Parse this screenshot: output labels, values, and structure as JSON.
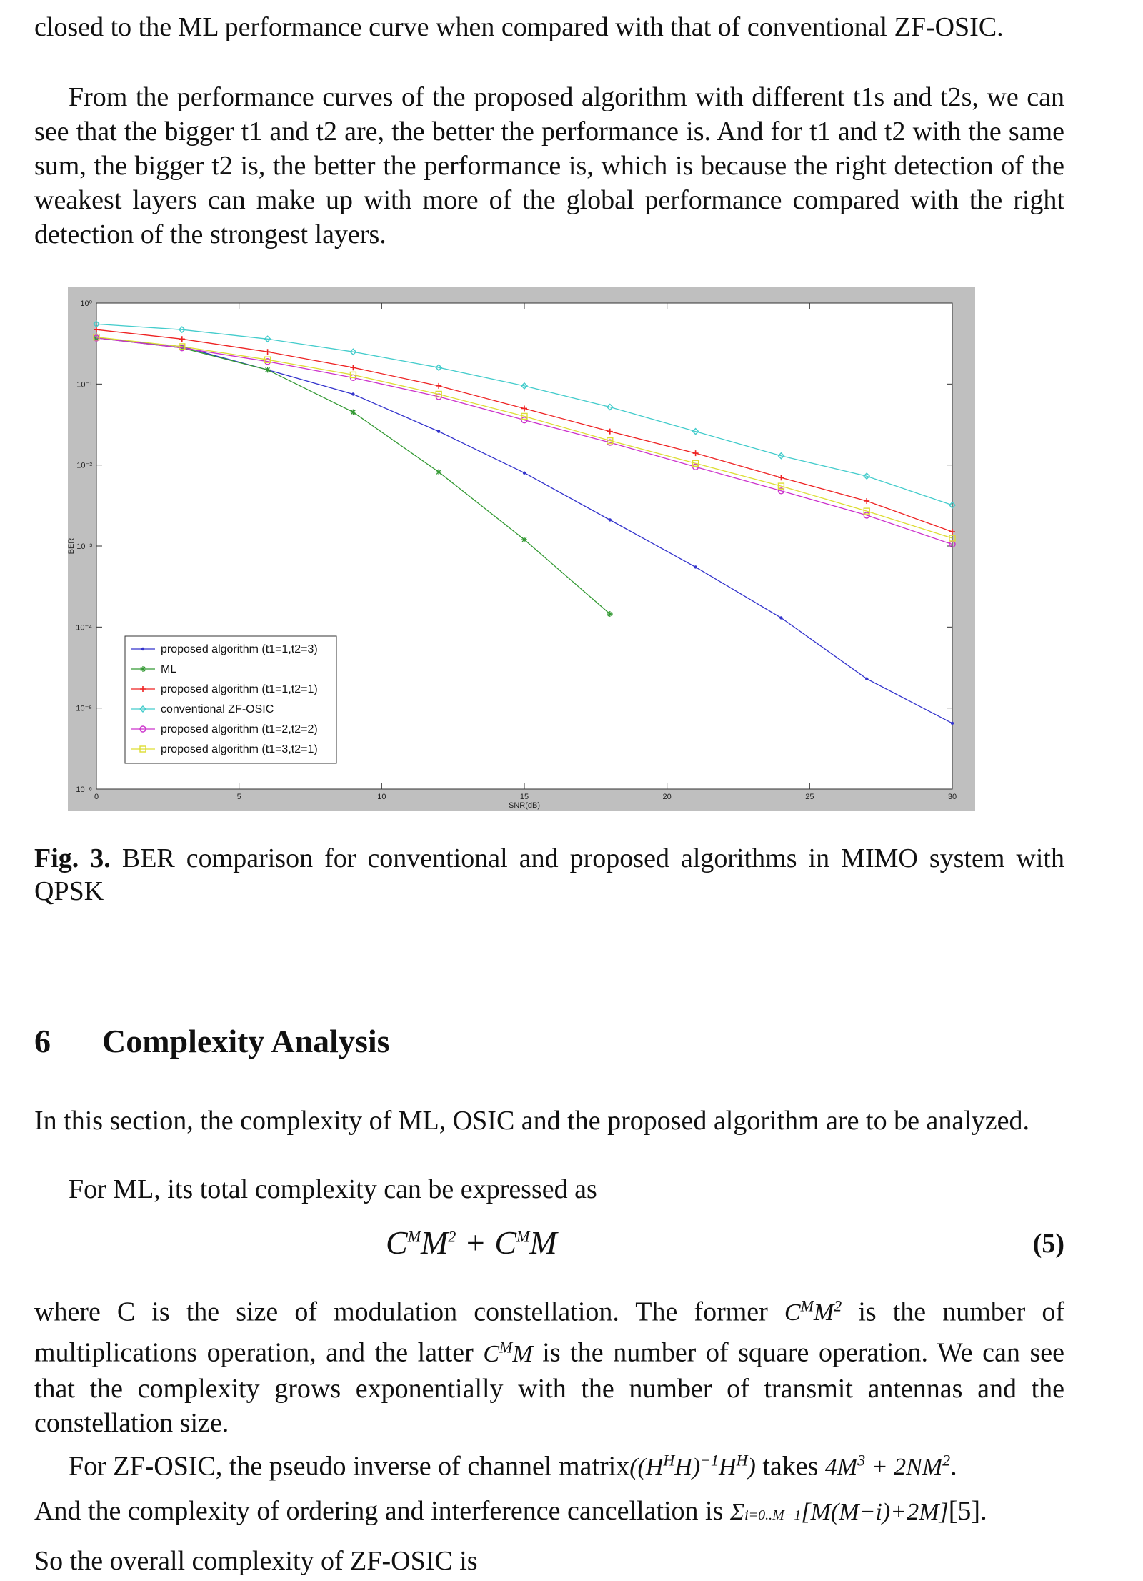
{
  "text": {
    "p1": "closed to the ML performance curve when compared with that of conventional ZF-OSIC.",
    "p2": "From the performance curves of the proposed algorithm with different t1s and t2s, we can see that the bigger t1 and t2 are, the better the performance is. And for t1 and t2 with the same sum, the bigger t2 is, the better the performance is, which is because the right detection of the weakest layers can make up with more of the global performance compared with the right detection of the strongest layers.",
    "caption_label": "Fig. 3.",
    "caption_text": " BER comparison for conventional and proposed algorithms in MIMO system with QPSK",
    "section_number": "6",
    "section_title": "Complexity Analysis",
    "p3": "In this section, the complexity of ML, OSIC and the proposed algorithm are to be analyzed.",
    "p4": "For ML, its total complexity can be expressed as",
    "eq5_number": "(5)",
    "p5_a": "where C is the size of modulation constellation. The former",
    "p5_b": "is the number of multiplications operation, and the latter",
    "p5_c": "is the number of square operation. We can see that the complexity grows exponentially with the number of transmit antennas and the constellation size.",
    "p6_a": "For ZF-OSIC, the pseudo inverse of channel matrix",
    "p6_b": "takes",
    "p7_a": "And the complexity of ordering and interference cancellation is",
    "p7_b": "[5].",
    "p8": "So the overall complexity of ZF-OSIC is"
  },
  "chart_data": {
    "type": "line",
    "xlabel": "SNR(dB)",
    "ylabel": "BER",
    "yscale": "log",
    "xlim": [
      0,
      30
    ],
    "ylim": [
      1e-06,
      1
    ],
    "xticks": [
      0,
      5,
      10,
      15,
      20,
      25,
      30
    ],
    "yticks": [
      1,
      0.1,
      0.01,
      0.001,
      0.0001,
      1e-05,
      1e-06
    ],
    "ytick_labels": [
      "10⁰",
      "10⁻¹",
      "10⁻²",
      "10⁻³",
      "10⁻⁴",
      "10⁻⁵",
      "10⁻⁶"
    ],
    "legend_position": "lower-left",
    "grid": false,
    "series": [
      {
        "name": "proposed algorithm (t1=1,t2=3)",
        "color": "#3333cc",
        "marker": "dot",
        "x": [
          0,
          3,
          6,
          9,
          12,
          15,
          18,
          21,
          24,
          27,
          30
        ],
        "y": [
          0.37,
          0.29,
          0.15,
          0.075,
          0.026,
          0.008,
          0.0021,
          0.00055,
          0.00013,
          2.3e-05,
          6.5e-06
        ]
      },
      {
        "name": "ML",
        "color": "#339933",
        "marker": "star",
        "x": [
          0,
          3,
          6,
          9,
          12,
          15,
          18
        ],
        "y": [
          0.37,
          0.28,
          0.15,
          0.045,
          0.0082,
          0.0012,
          0.000145
        ]
      },
      {
        "name": "proposed algorithm (t1=1,t2=1)",
        "color": "#ee2222",
        "marker": "plus",
        "x": [
          0,
          3,
          6,
          9,
          12,
          15,
          18,
          21,
          24,
          27,
          30
        ],
        "y": [
          0.47,
          0.36,
          0.25,
          0.16,
          0.095,
          0.05,
          0.026,
          0.014,
          0.007,
          0.0036,
          0.0015
        ]
      },
      {
        "name": "conventional ZF-OSIC",
        "color": "#44cccc",
        "marker": "diamond",
        "x": [
          0,
          3,
          6,
          9,
          12,
          15,
          18,
          21,
          24,
          27,
          30
        ],
        "y": [
          0.55,
          0.47,
          0.36,
          0.25,
          0.16,
          0.095,
          0.052,
          0.026,
          0.013,
          0.0073,
          0.0032
        ]
      },
      {
        "name": "proposed algorithm (t1=2,t2=2)",
        "color": "#cc33cc",
        "marker": "circle",
        "x": [
          0,
          3,
          6,
          9,
          12,
          15,
          18,
          21,
          24,
          27,
          30
        ],
        "y": [
          0.37,
          0.28,
          0.19,
          0.12,
          0.07,
          0.036,
          0.019,
          0.0095,
          0.0048,
          0.0024,
          0.00105
        ]
      },
      {
        "name": "proposed algorithm (t1=3,t2=1)",
        "color": "#dddd33",
        "marker": "square",
        "x": [
          0,
          3,
          6,
          9,
          12,
          15,
          18,
          21,
          24,
          27,
          30
        ],
        "y": [
          0.38,
          0.29,
          0.2,
          0.13,
          0.075,
          0.04,
          0.02,
          0.0105,
          0.0055,
          0.0027,
          0.00125
        ]
      }
    ]
  }
}
